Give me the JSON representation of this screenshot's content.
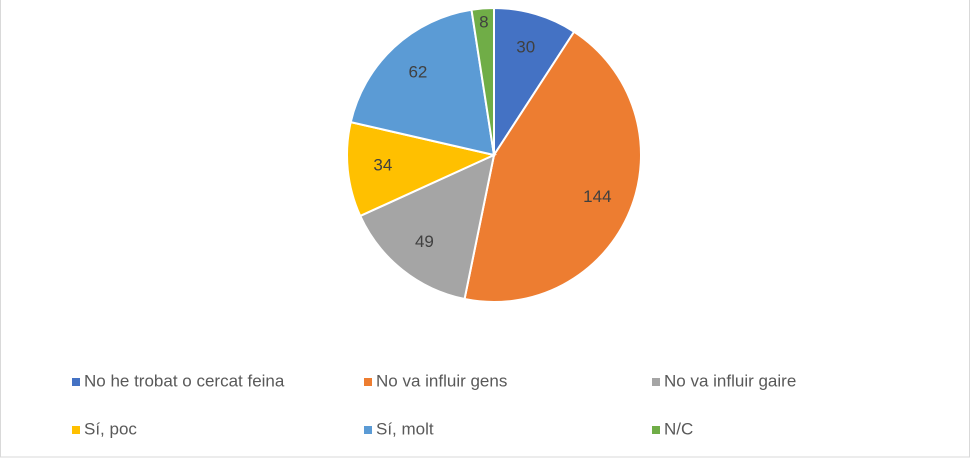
{
  "chart_data": {
    "type": "pie",
    "categories": [
      "No he trobat o cercat feina",
      "No va influir gens",
      "No va influir gaire",
      "Sí, poc",
      "Sí, molt",
      "N/C"
    ],
    "values": [
      30,
      144,
      49,
      34,
      62,
      8
    ],
    "colors": [
      "#4472c4",
      "#ed7d31",
      "#a5a5a5",
      "#ffc000",
      "#5b9bd5",
      "#70ad47"
    ],
    "legend": "bottom"
  }
}
